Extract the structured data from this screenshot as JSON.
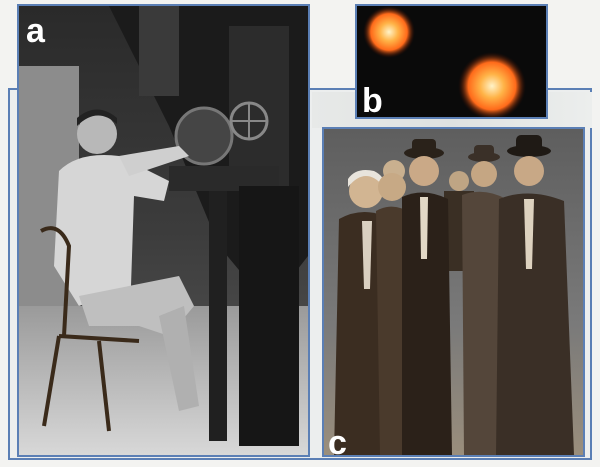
{
  "figure": {
    "panels": [
      {
        "label": "a"
      },
      {
        "label": "b"
      },
      {
        "label": "c"
      }
    ]
  }
}
